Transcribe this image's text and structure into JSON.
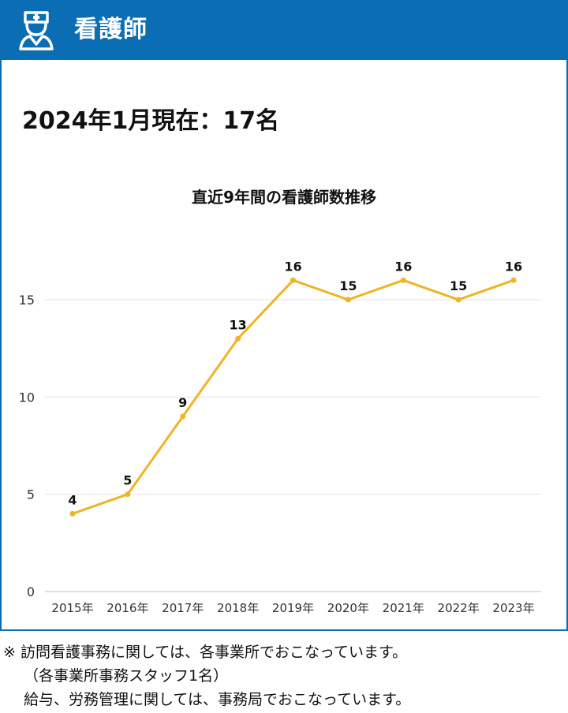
{
  "header": {
    "title": "看護師",
    "icon": "nurse-icon",
    "background_color": "#0b6db3"
  },
  "status_text": "2024年1月現在：17名",
  "chart_data": {
    "type": "line",
    "title": "直近9年間の看護師数推移",
    "categories": [
      "2015年",
      "2016年",
      "2017年",
      "2018年",
      "2019年",
      "2020年",
      "2021年",
      "2022年",
      "2023年"
    ],
    "series": [
      {
        "values": [
          4,
          5,
          9,
          13,
          16,
          15,
          16,
          15,
          16
        ],
        "color": "#f0b323"
      }
    ],
    "data_labels": [
      "4",
      "5",
      "9",
      "13",
      "16",
      "15",
      "16",
      "15",
      "16"
    ],
    "y_ticks": [
      "0",
      "5",
      "10",
      "15"
    ],
    "ylim": [
      0,
      17
    ],
    "grid": true,
    "legend": "none"
  },
  "notes": {
    "line1": "※ 訪問看護事務に関しては、各事業所でおこなっています。",
    "line2": "（各事業所事務スタッフ1名）",
    "line3": "給与、労務管理に関しては、事務局でおこなっています。"
  }
}
